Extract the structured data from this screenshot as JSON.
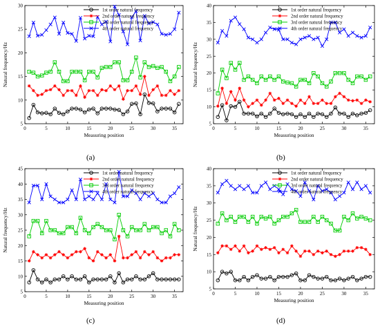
{
  "figure": {
    "panel_labels": [
      "(a)",
      "(b)",
      "(c)",
      "(d)"
    ]
  },
  "chart_data": [
    {
      "type": "line",
      "panel": "(a)",
      "xlabel": "Measuring  position",
      "ylabel": "Natural frequency/Hz",
      "xlim": [
        0,
        37
      ],
      "ylim": [
        5,
        30
      ],
      "xticks": [
        0,
        5,
        10,
        15,
        20,
        25,
        30,
        35
      ],
      "yticks": [
        5,
        10,
        15,
        20,
        25,
        30
      ],
      "legend_position": "top-right",
      "x": [
        1,
        2,
        3,
        4,
        5,
        6,
        7,
        8,
        9,
        10,
        11,
        12,
        13,
        14,
        15,
        16,
        17,
        18,
        19,
        20,
        21,
        22,
        23,
        24,
        25,
        26,
        27,
        28,
        29,
        30,
        31,
        32,
        33,
        34,
        35,
        36
      ],
      "series": [
        {
          "name": "1st order natural frequency",
          "color": "#000000",
          "marker": "circle",
          "values": [
            6.2,
            9.0,
            7.4,
            7.2,
            7.3,
            7.0,
            8.2,
            7.3,
            7.0,
            7.6,
            8.2,
            8.2,
            8.0,
            7.4,
            8.0,
            8.2,
            7.2,
            8.2,
            8.2,
            8.2,
            8.0,
            7.9,
            7.0,
            7.6,
            9.2,
            9.3,
            7.0,
            11.2,
            9.4,
            9.3,
            7.6,
            8.2,
            8.2,
            8.2,
            7.4,
            9.2
          ]
        },
        {
          "name": "2nd order natural frequency",
          "color": "#ff0000",
          "marker": "star",
          "values": [
            13.0,
            12.0,
            11.0,
            11.2,
            12.0,
            12.2,
            13.0,
            12.2,
            11.0,
            12.0,
            12.0,
            11.0,
            13.0,
            10.6,
            12.0,
            12.0,
            11.0,
            12.2,
            12.0,
            13.0,
            12.2,
            13.0,
            10.2,
            12.0,
            12.0,
            13.0,
            11.2,
            15.0,
            11.0,
            12.2,
            13.0,
            11.0,
            11.0,
            12.0,
            11.2,
            12.0
          ]
        },
        {
          "name": "3rd order natural frequency",
          "color": "#00cc00",
          "marker": "square",
          "values": [
            16.0,
            15.8,
            15.0,
            15.2,
            15.8,
            16.0,
            18.0,
            16.0,
            14.0,
            14.0,
            16.0,
            16.0,
            16.0,
            14.2,
            16.0,
            16.0,
            14.8,
            16.8,
            17.0,
            17.0,
            18.0,
            18.0,
            14.2,
            14.2,
            16.0,
            19.0,
            14.8,
            18.0,
            17.0,
            17.2,
            16.8,
            17.0,
            16.0,
            14.0,
            15.0,
            17.0
          ]
        },
        {
          "name": "4th order natural frequency",
          "color": "#0000ff",
          "marker": "x",
          "values": [
            23.5,
            26.4,
            23.6,
            23.8,
            24.8,
            26.0,
            27.5,
            24.0,
            26.4,
            24.2,
            24.0,
            22.5,
            27.4,
            23.0,
            23.6,
            23.5,
            27.6,
            26.0,
            26.6,
            22.4,
            29.8,
            28.0,
            24.5,
            21.8,
            27.5,
            28.8,
            22.6,
            27.8,
            26.2,
            26.5,
            26.0,
            24.0,
            23.8,
            24.0,
            25.0,
            28.5
          ]
        }
      ]
    },
    {
      "type": "line",
      "panel": "(b)",
      "xlabel": "Measuring  position",
      "ylabel": "Natural frequency/Hz",
      "xlim": [
        0,
        37
      ],
      "ylim": [
        5,
        40
      ],
      "xticks": [
        0,
        5,
        10,
        15,
        20,
        25,
        30,
        35
      ],
      "yticks": [
        5,
        10,
        15,
        20,
        25,
        30,
        35,
        40
      ],
      "legend_position": "top-right",
      "x": [
        1,
        2,
        3,
        4,
        5,
        6,
        7,
        8,
        9,
        10,
        11,
        12,
        13,
        14,
        15,
        16,
        17,
        18,
        19,
        20,
        21,
        22,
        23,
        24,
        25,
        26,
        27,
        28,
        29,
        30,
        31,
        32,
        33,
        34,
        35,
        36
      ],
      "series": [
        {
          "name": "1st order natural frequency",
          "color": "#000000",
          "marker": "circle",
          "values": [
            7.0,
            10.5,
            6.0,
            10.2,
            10.0,
            11.5,
            8.0,
            8.0,
            8.0,
            7.2,
            8.0,
            7.0,
            8.0,
            9.5,
            8.2,
            7.8,
            8.0,
            7.8,
            7.0,
            7.8,
            7.0,
            8.0,
            7.0,
            8.0,
            7.8,
            7.0,
            8.0,
            9.8,
            8.0,
            8.0,
            7.0,
            8.0,
            7.5,
            8.0,
            8.2,
            9.0
          ]
        },
        {
          "name": "2nd order natural frequency",
          "color": "#ff0000",
          "marker": "star",
          "values": [
            10.2,
            15.5,
            11.0,
            14.5,
            12.0,
            15.5,
            12.0,
            10.0,
            11.0,
            12.0,
            10.5,
            12.0,
            14.0,
            12.0,
            12.5,
            11.0,
            12.0,
            11.0,
            10.2,
            12.0,
            11.0,
            13.0,
            11.0,
            11.0,
            12.0,
            11.0,
            11.0,
            13.0,
            14.0,
            13.0,
            12.0,
            11.8,
            12.0,
            11.0,
            12.0,
            11.5
          ]
        },
        {
          "name": "3rd order natural frequency",
          "color": "#00cc00",
          "marker": "square",
          "values": [
            14.0,
            21.0,
            18.5,
            23.0,
            21.0,
            23.0,
            18.0,
            19.0,
            18.0,
            17.0,
            19.0,
            18.0,
            19.0,
            18.0,
            19.0,
            17.5,
            17.2,
            17.0,
            16.0,
            18.0,
            18.0,
            17.0,
            20.0,
            19.0,
            17.0,
            16.0,
            17.5,
            20.0,
            20.0,
            20.0,
            18.0,
            17.0,
            19.0,
            19.0,
            18.0,
            19.0
          ]
        },
        {
          "name": "4th order natural frequency",
          "color": "#0000ff",
          "marker": "x",
          "values": [
            29.0,
            32.5,
            31.0,
            35.5,
            36.5,
            34.5,
            33.0,
            30.5,
            30.0,
            29.0,
            30.0,
            32.0,
            33.5,
            33.0,
            32.8,
            30.0,
            30.0,
            29.0,
            28.5,
            30.0,
            30.5,
            31.0,
            30.0,
            30.5,
            28.0,
            30.0,
            35.0,
            35.0,
            32.0,
            33.0,
            31.0,
            32.0,
            31.0,
            30.5,
            31.0,
            33.5
          ]
        }
      ]
    },
    {
      "type": "line",
      "panel": "(c)",
      "xlabel": "Measuring  position",
      "ylabel": "Natural frequency/Hz",
      "xlim": [
        0,
        37
      ],
      "ylim": [
        5,
        45
      ],
      "xticks": [
        0,
        5,
        10,
        15,
        20,
        25,
        30,
        35
      ],
      "yticks": [
        5,
        10,
        15,
        20,
        25,
        30,
        35,
        40,
        45
      ],
      "legend_position": "top-right",
      "x": [
        1,
        2,
        3,
        4,
        5,
        6,
        7,
        8,
        9,
        10,
        11,
        12,
        13,
        14,
        15,
        16,
        17,
        18,
        19,
        20,
        21,
        22,
        23,
        24,
        25,
        26,
        27,
        28,
        29,
        30,
        31,
        32,
        33,
        34,
        35,
        36
      ],
      "series": [
        {
          "name": "1st order natural frequency",
          "color": "#000000",
          "marker": "circle",
          "values": [
            8.0,
            12.0,
            9.0,
            8.0,
            9.0,
            8.0,
            9.0,
            9.0,
            10.0,
            9.0,
            10.0,
            9.0,
            9.0,
            10.0,
            8.0,
            9.0,
            9.0,
            9.0,
            9.0,
            10.0,
            8.0,
            11.0,
            8.0,
            9.0,
            9.0,
            10.0,
            9.0,
            9.0,
            10.0,
            11.0,
            9.0,
            9.0,
            9.0,
            9.0,
            9.0,
            9.0
          ]
        },
        {
          "name": "2nd order natural frequency",
          "color": "#ff0000",
          "marker": "star",
          "values": [
            15.0,
            18.0,
            17.0,
            16.0,
            17.0,
            16.0,
            17.0,
            18.0,
            17.0,
            16.0,
            17.0,
            18.0,
            18.0,
            19.0,
            16.0,
            15.0,
            18.0,
            17.0,
            16.0,
            17.0,
            15.0,
            23.0,
            16.0,
            16.0,
            17.0,
            18.0,
            16.0,
            18.0,
            17.0,
            18.0,
            16.0,
            15.0,
            16.0,
            16.0,
            17.0,
            17.0
          ]
        },
        {
          "name": "3rd order natural frequency",
          "color": "#00cc00",
          "marker": "square",
          "values": [
            23.0,
            28.0,
            28.0,
            24.0,
            28.0,
            25.0,
            25.0,
            24.0,
            24.0,
            26.0,
            26.0,
            24.0,
            29.0,
            25.0,
            24.0,
            26.0,
            27.0,
            26.0,
            25.0,
            25.0,
            22.0,
            30.0,
            25.0,
            23.0,
            26.0,
            25.0,
            25.0,
            27.0,
            25.0,
            26.0,
            26.0,
            24.0,
            25.0,
            23.0,
            27.0,
            25.0
          ]
        },
        {
          "name": "4th order natural frequency",
          "color": "#0000ff",
          "marker": "x",
          "values": [
            34.0,
            39.5,
            39.5,
            35.0,
            40.0,
            36.0,
            35.0,
            34.0,
            34.0,
            35.0,
            38.0,
            35.0,
            41.5,
            35.0,
            36.0,
            35.0,
            37.0,
            35.0,
            40.0,
            35.0,
            34.0,
            44.0,
            36.0,
            36.0,
            38.0,
            37.0,
            35.0,
            37.0,
            36.0,
            37.0,
            35.0,
            34.0,
            34.0,
            36.0,
            37.0,
            39.0
          ]
        }
      ]
    },
    {
      "type": "line",
      "panel": "(d)",
      "xlabel": "Measuring  position",
      "ylabel": "Natural frequency/Hz",
      "xlim": [
        0,
        37
      ],
      "ylim": [
        5,
        40
      ],
      "xticks": [
        0,
        5,
        10,
        15,
        20,
        25,
        30,
        35
      ],
      "yticks": [
        5,
        10,
        15,
        20,
        25,
        30,
        35,
        40
      ],
      "legend_position": "top-right",
      "x": [
        1,
        2,
        3,
        4,
        5,
        6,
        7,
        8,
        9,
        10,
        11,
        12,
        13,
        14,
        15,
        16,
        17,
        18,
        19,
        20,
        21,
        22,
        23,
        24,
        25,
        26,
        27,
        28,
        29,
        30,
        31,
        32,
        33,
        34,
        35,
        36
      ],
      "series": [
        {
          "name": "1st order natural frequency",
          "color": "#000000",
          "marker": "circle",
          "values": [
            7.5,
            10.0,
            9.5,
            10.0,
            7.5,
            7.5,
            8.5,
            7.5,
            8.5,
            9.0,
            8.0,
            8.0,
            8.5,
            7.5,
            8.5,
            8.5,
            8.5,
            9.0,
            9.5,
            7.5,
            7.5,
            9.0,
            8.5,
            8.0,
            8.0,
            8.5,
            7.5,
            7.5,
            8.0,
            7.5,
            8.0,
            8.5,
            7.5,
            8.0,
            8.5,
            8.5
          ]
        },
        {
          "name": "2nd order natural frequency",
          "color": "#ff0000",
          "marker": "star",
          "values": [
            15.5,
            17.5,
            17.5,
            16.5,
            17.5,
            16.0,
            17.5,
            15.5,
            16.0,
            17.5,
            16.5,
            17.0,
            16.5,
            17.0,
            15.5,
            16.5,
            15.5,
            17.5,
            16.0,
            14.5,
            16.0,
            16.0,
            15.0,
            16.0,
            15.5,
            16.0,
            15.0,
            14.5,
            15.0,
            16.0,
            16.0,
            16.0,
            17.0,
            17.0,
            16.5,
            15.0
          ]
        },
        {
          "name": "3rd order natural frequency",
          "color": "#00cc00",
          "marker": "square",
          "values": [
            24.0,
            27.0,
            25.0,
            26.0,
            24.5,
            26.0,
            26.0,
            24.5,
            26.0,
            24.0,
            26.0,
            25.5,
            26.0,
            24.0,
            25.0,
            26.0,
            26.0,
            27.0,
            28.0,
            24.5,
            24.5,
            24.5,
            26.0,
            24.5,
            26.0,
            25.0,
            24.0,
            22.0,
            22.0,
            26.0,
            25.0,
            27.0,
            25.5,
            26.0,
            25.5,
            25.0
          ]
        },
        {
          "name": "4th order natural frequency",
          "color": "#0000ff",
          "marker": "x",
          "values": [
            33.0,
            35.5,
            36.5,
            35.0,
            34.0,
            35.0,
            34.0,
            35.0,
            33.0,
            33.0,
            35.0,
            36.0,
            34.0,
            35.0,
            34.0,
            32.5,
            35.5,
            34.0,
            33.5,
            32.0,
            36.0,
            33.5,
            31.0,
            35.0,
            33.5,
            34.0,
            33.0,
            31.0,
            32.0,
            33.0,
            36.0,
            34.0,
            36.0,
            34.0,
            35.0,
            33.0
          ]
        }
      ]
    }
  ]
}
